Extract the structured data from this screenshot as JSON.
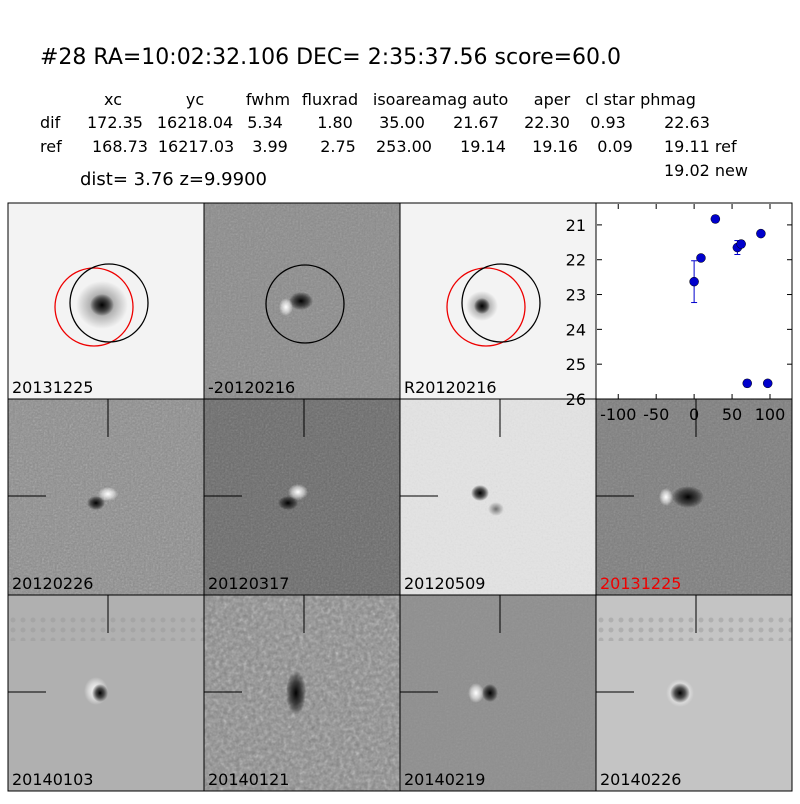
{
  "header": {
    "title": "#28   RA=10:02:32.106 DEC= 2:35:37.56      score=60.0",
    "dist": "dist=  3.76      z=9.9900"
  },
  "table": {
    "columns": [
      "xc",
      "yc",
      "fwhm",
      "fluxrad",
      "isoarea",
      "mag auto",
      "aper",
      "cl star",
      "phmag"
    ],
    "rows": [
      [
        "dif",
        "172.35",
        "16218.04",
        "5.34",
        "1.80",
        "35.00",
        "21.67",
        "22.30",
        "0.93",
        "22.63"
      ],
      [
        "ref",
        "168.73",
        "16217.03",
        "3.99",
        "2.75",
        "253.00",
        "19.14",
        "19.16",
        "0.09",
        "19.11 ref"
      ]
    ],
    "note": "19.02 new"
  },
  "panels": [
    {
      "label": "20131225"
    },
    {
      "label": "-20120216"
    },
    {
      "label": "R20120216"
    },
    {
      "label": "20120226"
    },
    {
      "label": "20120317"
    },
    {
      "label": "20120509"
    },
    {
      "label": "20131225"
    },
    {
      "label": "20140103"
    },
    {
      "label": "20140121"
    },
    {
      "label": "20140219"
    },
    {
      "label": "20140226"
    }
  ],
  "chart_data": {
    "type": "scatter",
    "x": [
      0,
      9,
      28,
      57,
      62,
      70,
      88,
      97
    ],
    "values": [
      22.63,
      21.95,
      20.83,
      21.65,
      21.55,
      25.55,
      21.25,
      25.55
    ],
    "errors": [
      0.6,
      0.08,
      0.1,
      0.2,
      0.1,
      0.1,
      0.03,
      0.05
    ],
    "color": "#0000cc",
    "xlim": [
      -128,
      129
    ],
    "ylim": [
      20.4,
      26
    ],
    "y_inverted": true,
    "xticks": [
      -100,
      -50,
      0,
      50,
      100
    ],
    "yticks": [
      21,
      22,
      23,
      24,
      25,
      26
    ]
  }
}
